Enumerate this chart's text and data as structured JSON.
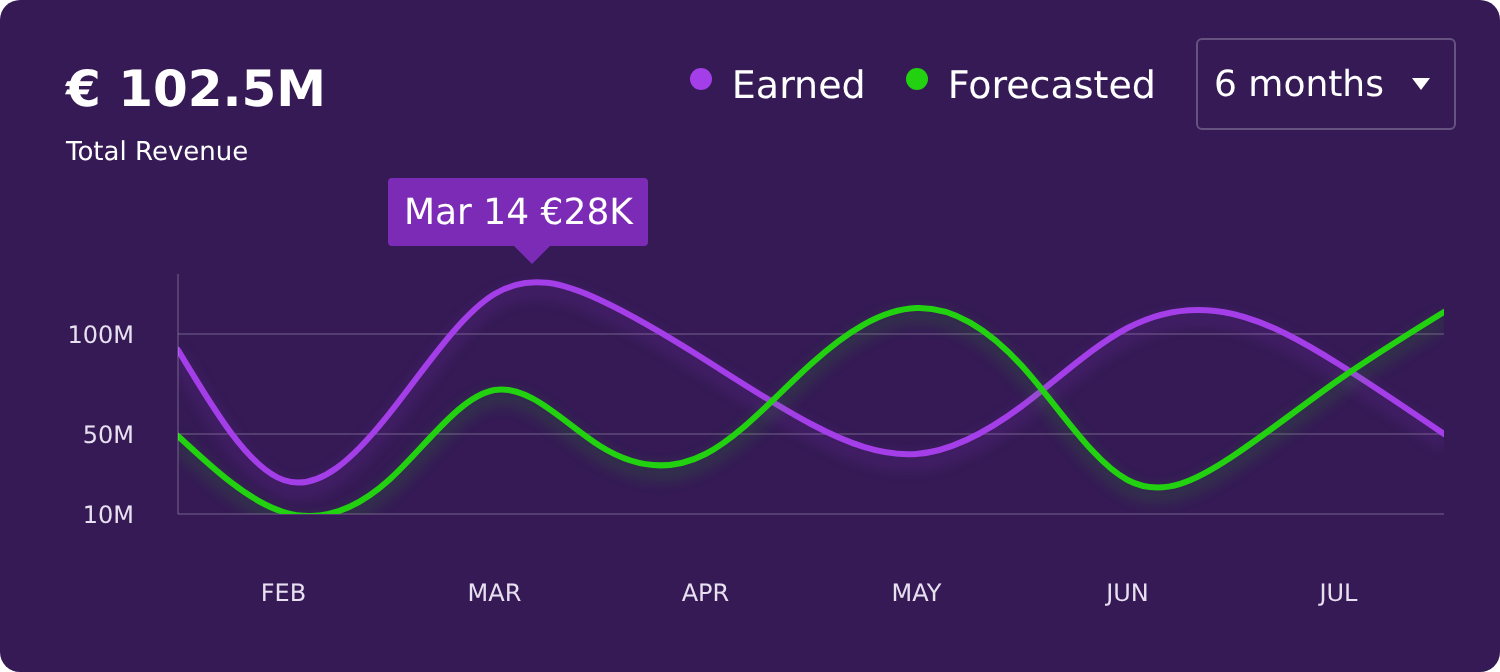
{
  "chart_data": {
    "type": "line",
    "title": "€ 102.5M",
    "subtitle": "Total Revenue",
    "annotations": [
      "Mar 14 €28K",
      "6 months"
    ],
    "categories": [
      null,
      "FEB",
      null,
      "MAR",
      null,
      "APR",
      null,
      "MAY",
      null,
      "JUN",
      null,
      "JUL",
      null
    ],
    "ylim": [
      10,
      130
    ],
    "yticks": [
      {
        "value": 10,
        "label": "10M"
      },
      {
        "value": 50,
        "label": "50M"
      },
      {
        "value": 100,
        "label": "100M"
      }
    ],
    "grid": "y",
    "legend": "top right",
    "marker": "none",
    "line_style": "solid",
    "series": [
      {
        "name": "Earned",
        "color": "#a43ee8",
        "values": [
          92,
          27,
          60,
          120,
          117,
          87,
          55,
          40,
          64,
          103,
          110,
          85,
          50
        ]
      },
      {
        "name": "Forecasted",
        "color": "#22d10f",
        "values": [
          49,
          11,
          27,
          72,
          44,
          40,
          85,
          113,
          84,
          27,
          39,
          77,
          111
        ]
      }
    ]
  }
}
